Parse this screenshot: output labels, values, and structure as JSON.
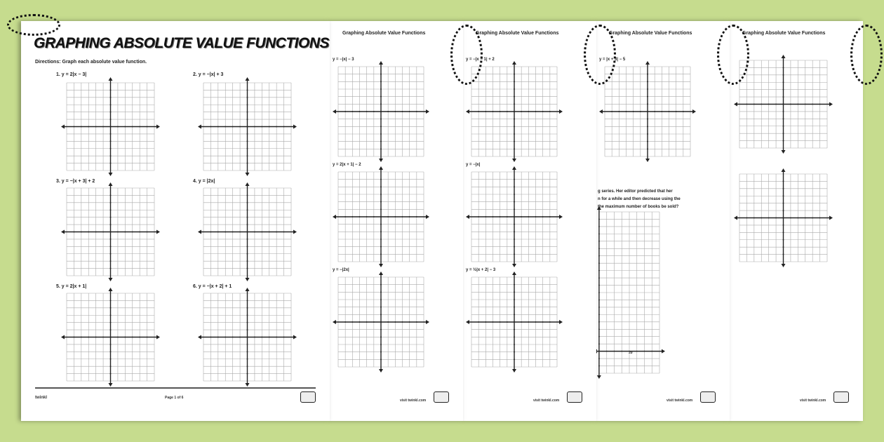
{
  "background_color": "#c6dc8e",
  "page1": {
    "title": "GRAPHING ABSOLUTE VALUE FUNCTIONS",
    "directions": "Directions: Graph each absolute value function.",
    "problems": [
      "1.  y = 2|x − 3|",
      "2.  y = −|x| + 3",
      "3.  y = −|x + 3| + 2",
      "4.  y = |2x|",
      "5.  y = 2|x + 1|",
      "6.  y = −|x + 2| + 1"
    ],
    "page_number": "Page 1 of 6",
    "brand": "twinkl"
  },
  "page2": {
    "title": "Graphing Absolute Value Functions",
    "problems": [
      "y = −|x| − 3",
      "y = 2|x + 1| − 2",
      "y = −|2x|"
    ],
    "footer": "visit twinkl.com"
  },
  "page3": {
    "title": "Graphing Absolute Value Functions",
    "problems": [
      "y = −|x − 1| + 2",
      "y = −|x|",
      "y = ½|x + 2| − 3"
    ],
    "footer": "visit twinkl.com"
  },
  "page4": {
    "title": "Graphing Absolute Value Functions",
    "problems": [
      "y = |x + 3| − 5"
    ],
    "word_problem": [
      "g series. Her editor predicted that her",
      "n for a while and then decrease using the",
      "the maximum number of books be sold?"
    ],
    "axis_label": "20",
    "footer": "visit twinkl.com"
  },
  "page5": {
    "title": "Graphing Absolute Value Functions",
    "footer": "visit twinkl.com"
  }
}
